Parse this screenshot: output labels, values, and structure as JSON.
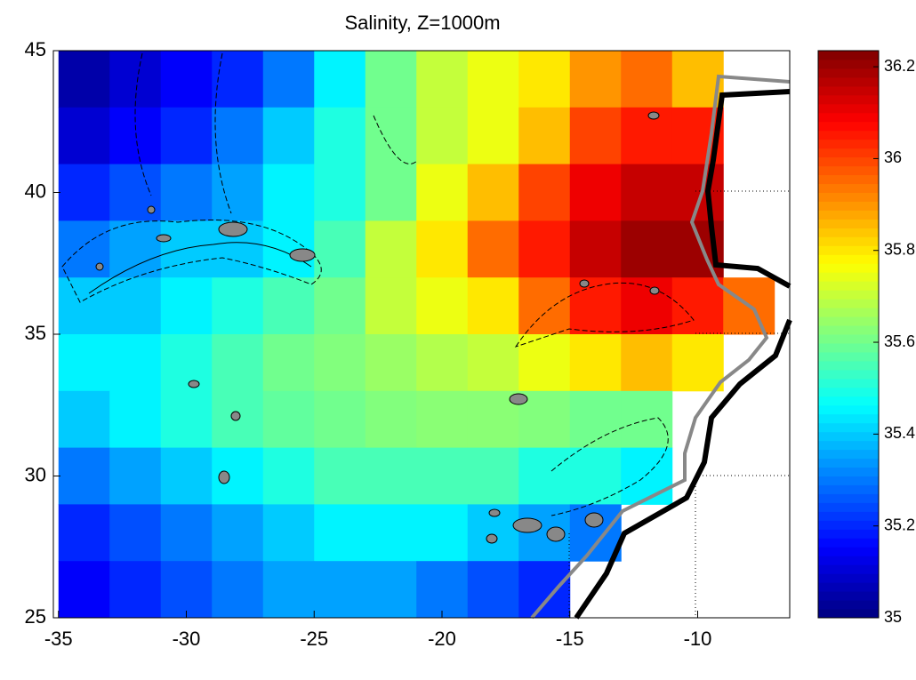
{
  "chart_data": {
    "type": "heatmap",
    "title": "Salinity, Z=1000m",
    "colormap": "jet",
    "x": [
      -34,
      -32,
      -30,
      -28,
      -26,
      -24,
      -22,
      -20,
      -18,
      -16,
      -14,
      -12,
      -10,
      -8
    ],
    "y": [
      44,
      42,
      40,
      38,
      36,
      34,
      32,
      30,
      28,
      26
    ],
    "values": [
      [
        35.05,
        35.1,
        35.15,
        35.2,
        35.3,
        35.45,
        35.6,
        35.7,
        35.75,
        35.8,
        35.9,
        35.95,
        35.85,
        null
      ],
      [
        35.1,
        35.15,
        35.2,
        35.3,
        35.4,
        35.5,
        35.6,
        35.7,
        35.75,
        35.85,
        36.0,
        36.05,
        36.05,
        null
      ],
      [
        35.2,
        35.25,
        35.3,
        35.35,
        35.45,
        35.5,
        35.6,
        35.75,
        35.85,
        36.0,
        36.1,
        36.15,
        36.15,
        null
      ],
      [
        35.3,
        35.35,
        35.4,
        35.4,
        35.45,
        35.55,
        35.7,
        35.8,
        35.95,
        36.05,
        36.15,
        36.2,
        36.2,
        null
      ],
      [
        35.4,
        35.4,
        35.45,
        35.5,
        35.55,
        35.6,
        35.7,
        35.75,
        35.8,
        35.95,
        36.05,
        36.1,
        36.05,
        35.95
      ],
      [
        35.45,
        35.45,
        35.5,
        35.55,
        35.6,
        35.62,
        35.65,
        35.68,
        35.7,
        35.75,
        35.8,
        35.85,
        35.8,
        null
      ],
      [
        35.4,
        35.45,
        35.5,
        35.55,
        35.58,
        35.6,
        35.62,
        35.63,
        35.63,
        35.62,
        35.6,
        35.6,
        null,
        null
      ],
      [
        35.3,
        35.35,
        35.4,
        35.45,
        35.5,
        35.55,
        35.55,
        35.55,
        35.55,
        35.5,
        35.5,
        35.45,
        null,
        null
      ],
      [
        35.2,
        35.25,
        35.3,
        35.35,
        35.4,
        35.45,
        35.45,
        35.45,
        35.4,
        35.35,
        35.3,
        null,
        null,
        null
      ],
      [
        35.15,
        35.2,
        35.25,
        35.3,
        35.35,
        35.35,
        35.35,
        35.3,
        35.25,
        35.2,
        null,
        null,
        null,
        null
      ]
    ],
    "xlim": [
      -35.2,
      -6.4
    ],
    "ylim": [
      25,
      45
    ],
    "xticks": [
      -35,
      -30,
      -25,
      -20,
      -15,
      -10
    ],
    "yticks": [
      25,
      30,
      35,
      40,
      45
    ],
    "clim": [
      35,
      36.235
    ],
    "cticks": [
      35,
      35.2,
      35.4,
      35.6,
      35.8,
      36,
      36.2
    ]
  }
}
